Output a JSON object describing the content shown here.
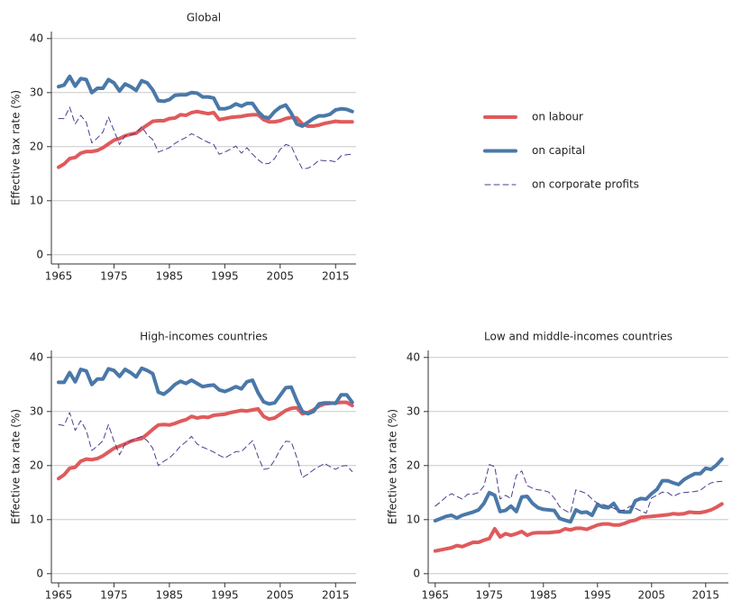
{
  "chart_data": [
    {
      "type": "line",
      "title": "Global",
      "y_label": "Effective tax rate (%)",
      "x": [
        1965,
        1966,
        1967,
        1968,
        1969,
        1970,
        1971,
        1972,
        1973,
        1974,
        1975,
        1976,
        1977,
        1978,
        1979,
        1980,
        1981,
        1982,
        1983,
        1984,
        1985,
        1986,
        1987,
        1988,
        1989,
        1990,
        1991,
        1992,
        1993,
        1994,
        1995,
        1996,
        1997,
        1998,
        1999,
        2000,
        2001,
        2002,
        2003,
        2004,
        2005,
        2006,
        2007,
        2008,
        2009,
        2010,
        2011,
        2012,
        2013,
        2014,
        2015,
        2016,
        2017,
        2018
      ],
      "xlim": [
        1963.7,
        2018.7
      ],
      "xticks": [
        1965,
        1975,
        1985,
        1995,
        2005,
        2015
      ],
      "ylim": [
        -1.7,
        41.3
      ],
      "yticks": [
        0,
        10,
        20,
        30,
        40
      ],
      "grid": true,
      "series": [
        {
          "name": "on labour",
          "color": "#e05a5c",
          "line_style": "solid",
          "line_width": 4,
          "values": [
            16.2,
            16.8,
            17.8,
            18,
            18.8,
            19.1,
            19.1,
            19.3,
            19.8,
            20.5,
            21.2,
            21.5,
            22,
            22.3,
            22.5,
            23.3,
            24,
            24.7,
            24.8,
            24.8,
            25.2,
            25.3,
            25.9,
            25.8,
            26.3,
            26.5,
            26.3,
            26.1,
            26.3,
            25,
            25.2,
            25.4,
            25.5,
            25.6,
            25.8,
            25.9,
            25.9,
            25,
            24.6,
            24.6,
            24.8,
            25.2,
            25.4,
            25.3,
            24.2,
            23.8,
            23.8,
            24,
            24.3,
            24.5,
            24.7,
            24.6,
            24.6,
            24.6
          ]
        },
        {
          "name": "on capital",
          "color": "#4a78a8",
          "line_style": "solid",
          "line_width": 4,
          "values": [
            31.1,
            31.4,
            33,
            31.2,
            32.6,
            32.4,
            30,
            30.8,
            30.8,
            32.4,
            31.8,
            30.3,
            31.6,
            31.1,
            30.4,
            32.2,
            31.8,
            30.5,
            28.5,
            28.4,
            28.7,
            29.5,
            29.6,
            29.6,
            30,
            29.9,
            29.2,
            29.2,
            29,
            27,
            27,
            27.3,
            27.9,
            27.5,
            28,
            28,
            26.5,
            25.5,
            25.3,
            26.5,
            27.3,
            27.7,
            26.2,
            24.2,
            23.8,
            24.5,
            25.2,
            25.7,
            25.7,
            26,
            26.8,
            27,
            26.9,
            26.5
          ]
        },
        {
          "name": "on corporate profits",
          "color": "#4b3d8f",
          "line_style": "dashed",
          "line_width": 1,
          "values": [
            25.2,
            25.2,
            27.3,
            24.2,
            25.8,
            24.5,
            20.7,
            21.6,
            22.7,
            25.5,
            23,
            20.4,
            22,
            22.2,
            22.5,
            23.7,
            22.2,
            21.3,
            19,
            19.4,
            19.8,
            20.6,
            21.2,
            21.7,
            22.4,
            21.9,
            21.3,
            20.8,
            20.4,
            18.6,
            19,
            19.5,
            20.1,
            18.8,
            19.8,
            18.6,
            17.6,
            16.8,
            16.9,
            17.8,
            19.5,
            20.4,
            20.1,
            17.8,
            15.9,
            16,
            16.6,
            17.5,
            17.4,
            17.4,
            17.2,
            18.3,
            18.5,
            18.6
          ]
        }
      ]
    },
    {
      "type": "line",
      "title": "High-incomes countries",
      "y_label": "Effective tax rate (%)",
      "x": [
        1965,
        1966,
        1967,
        1968,
        1969,
        1970,
        1971,
        1972,
        1973,
        1974,
        1975,
        1976,
        1977,
        1978,
        1979,
        1980,
        1981,
        1982,
        1983,
        1984,
        1985,
        1986,
        1987,
        1988,
        1989,
        1990,
        1991,
        1992,
        1993,
        1994,
        1995,
        1996,
        1997,
        1998,
        1999,
        2000,
        2001,
        2002,
        2003,
        2004,
        2005,
        2006,
        2007,
        2008,
        2009,
        2010,
        2011,
        2012,
        2013,
        2014,
        2015,
        2016,
        2017,
        2018
      ],
      "xlim": [
        1963.7,
        2018.7
      ],
      "xticks": [
        1965,
        1975,
        1985,
        1995,
        2005,
        2015
      ],
      "ylim": [
        -1.7,
        41.3
      ],
      "yticks": [
        0,
        10,
        20,
        30,
        40
      ],
      "grid": true,
      "series": [
        {
          "color": "#e05a5c",
          "line_style": "solid",
          "line_width": 4,
          "values": [
            17.6,
            18.3,
            19.5,
            19.7,
            20.8,
            21.2,
            21.1,
            21.3,
            21.8,
            22.5,
            23.2,
            23.6,
            24,
            24.5,
            24.8,
            25,
            25.8,
            26.7,
            27.5,
            27.6,
            27.5,
            27.8,
            28.2,
            28.5,
            29.1,
            28.8,
            29,
            28.9,
            29.3,
            29.4,
            29.5,
            29.8,
            30,
            30.2,
            30.1,
            30.3,
            30.5,
            29.1,
            28.6,
            28.8,
            29.5,
            30.2,
            30.6,
            30.7,
            29.6,
            29.8,
            30.3,
            31,
            31.4,
            31.5,
            31.6,
            31.7,
            31.7,
            31.1
          ]
        },
        {
          "color": "#4a78a8",
          "line_style": "solid",
          "line_width": 4,
          "values": [
            35.4,
            35.4,
            37.2,
            35.5,
            37.8,
            37.5,
            35,
            36,
            36,
            37.9,
            37.6,
            36.5,
            37.8,
            37.2,
            36.4,
            38,
            37.6,
            37,
            33.6,
            33.2,
            34,
            35,
            35.6,
            35.2,
            35.8,
            35.2,
            34.6,
            34.8,
            34.9,
            34,
            33.7,
            34.1,
            34.6,
            34.2,
            35.5,
            35.8,
            33.5,
            31.8,
            31.4,
            31.6,
            33,
            34.4,
            34.5,
            32,
            30,
            29.6,
            30,
            31.4,
            31.6,
            31.6,
            31.5,
            33.1,
            33.1,
            31.7
          ]
        },
        {
          "color": "#4b3d8f",
          "line_style": "dashed",
          "line_width": 1,
          "values": [
            27.6,
            27.4,
            29.8,
            26.5,
            28.3,
            26.5,
            22.8,
            23.6,
            24.6,
            27.6,
            24.5,
            22,
            24,
            24.5,
            25,
            25.4,
            24.6,
            23.2,
            20,
            20.8,
            21.4,
            22.4,
            23.6,
            24.4,
            25.4,
            24,
            23.4,
            23,
            22.5,
            21.9,
            21.4,
            22,
            22.6,
            22.6,
            23.6,
            24.6,
            21.7,
            19.3,
            19.5,
            21,
            23,
            24.5,
            24.4,
            21.5,
            17.8,
            18.4,
            19.2,
            19.8,
            20.4,
            19.8,
            19.3,
            19.9,
            20,
            18.9
          ]
        }
      ]
    },
    {
      "type": "line",
      "title": "Low and middle-incomes countries",
      "y_label": "Effective tax rate (%)",
      "x": [
        1965,
        1966,
        1967,
        1968,
        1969,
        1970,
        1971,
        1972,
        1973,
        1974,
        1975,
        1976,
        1977,
        1978,
        1979,
        1980,
        1981,
        1982,
        1983,
        1984,
        1985,
        1986,
        1987,
        1988,
        1989,
        1990,
        1991,
        1992,
        1993,
        1994,
        1995,
        1996,
        1997,
        1998,
        1999,
        2000,
        2001,
        2002,
        2003,
        2004,
        2005,
        2006,
        2007,
        2008,
        2009,
        2010,
        2011,
        2012,
        2013,
        2014,
        2015,
        2016,
        2017,
        2018
      ],
      "xlim": [
        1963.7,
        2019.2
      ],
      "xticks": [
        1965,
        1975,
        1985,
        1995,
        2005,
        2015
      ],
      "ylim": [
        -1.7,
        41.3
      ],
      "yticks": [
        0,
        10,
        20,
        30,
        40
      ],
      "grid": true,
      "series": [
        {
          "color": "#e05a5c",
          "line_style": "solid",
          "line_width": 4,
          "values": [
            4.2,
            4.4,
            4.6,
            4.8,
            5.2,
            5,
            5.4,
            5.8,
            5.8,
            6.2,
            6.5,
            8.3,
            6.8,
            7.4,
            7.1,
            7.4,
            7.8,
            7.1,
            7.5,
            7.6,
            7.6,
            7.6,
            7.7,
            7.8,
            8.3,
            8.1,
            8.4,
            8.4,
            8.2,
            8.6,
            9,
            9.2,
            9.2,
            9,
            9,
            9.3,
            9.7,
            9.9,
            10.4,
            10.5,
            10.6,
            10.7,
            10.8,
            10.9,
            11.1,
            11,
            11.1,
            11.4,
            11.3,
            11.3,
            11.5,
            11.8,
            12.3,
            12.9
          ]
        },
        {
          "color": "#4a78a8",
          "line_style": "solid",
          "line_width": 4,
          "values": [
            9.8,
            10.2,
            10.6,
            10.8,
            10.3,
            10.8,
            11.1,
            11.4,
            11.8,
            13,
            15,
            14.5,
            11.5,
            11.7,
            12.5,
            11.5,
            14.2,
            14.3,
            13,
            12.2,
            11.9,
            11.8,
            11.7,
            10.2,
            9.9,
            9.6,
            11.8,
            11.3,
            11.4,
            10.8,
            12.8,
            12.3,
            12.2,
            13,
            11.5,
            11.4,
            11.4,
            13.5,
            13.9,
            13.8,
            14.8,
            15.6,
            17.2,
            17.2,
            16.8,
            16.5,
            17.4,
            18,
            18.5,
            18.5,
            19.5,
            19.3,
            20.1,
            21.2
          ]
        },
        {
          "color": "#4b3d8f",
          "line_style": "dashed",
          "line_width": 1,
          "values": [
            12.5,
            13.3,
            14.2,
            14.8,
            14.3,
            13.8,
            14.7,
            14.7,
            15,
            16.2,
            20.2,
            19.8,
            13.8,
            14.5,
            13.9,
            18.2,
            19,
            16.3,
            15.8,
            15.5,
            15.4,
            15.1,
            14,
            12.4,
            11.7,
            11.2,
            15.5,
            15.2,
            14.8,
            13.8,
            13,
            12.8,
            12.5,
            12.1,
            11.6,
            11.8,
            12.5,
            12.1,
            11.6,
            11.2,
            14,
            14.5,
            15.1,
            15,
            14.3,
            14.8,
            15,
            15.1,
            15.2,
            15.4,
            16.2,
            16.8,
            17,
            17.1
          ]
        }
      ]
    }
  ]
}
